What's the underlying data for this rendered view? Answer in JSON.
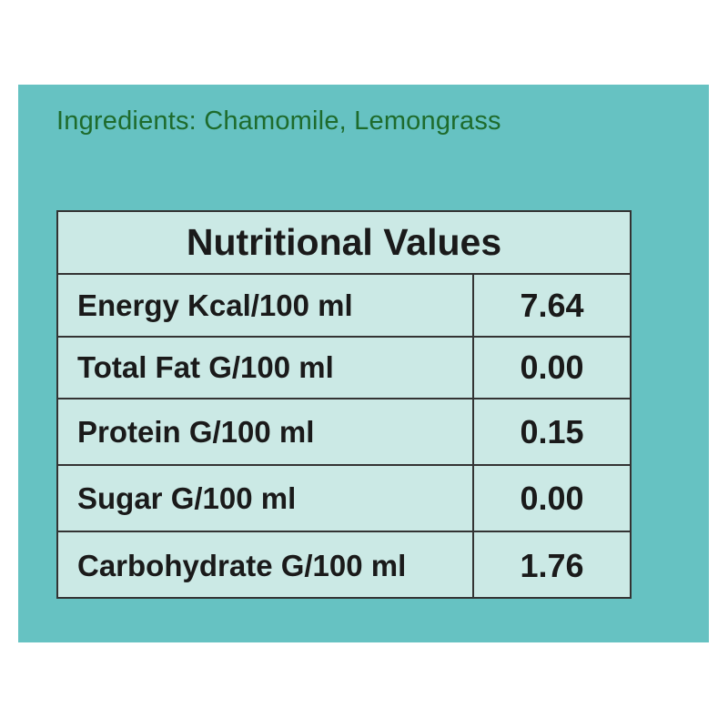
{
  "ingredients": "Ingredients: Chamomile, Lemongrass",
  "table": {
    "title": "Nutritional Values",
    "rows": [
      [
        "Energy Kcal/100 ml",
        "7.64"
      ],
      [
        "Total Fat G/100 ml",
        "0.00"
      ],
      [
        "Protein G/100 ml",
        "0.15"
      ],
      [
        "Sugar G/100 ml",
        "0.00"
      ],
      [
        "Carbohydrate G/100 ml",
        "1.76"
      ]
    ]
  }
}
